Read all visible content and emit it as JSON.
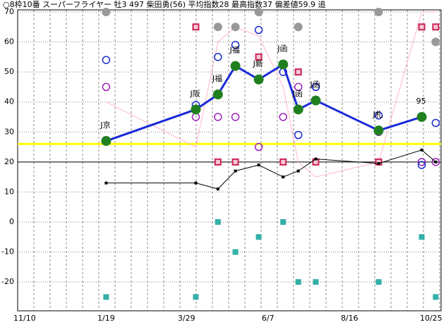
{
  "chart_data": {
    "type": "line",
    "title": "○8枠10番 スーパーフライヤー 牡3 497 柴田勇(56) 平均指数28 最高指数37 偏差値59.9 追",
    "x": [
      70,
      147,
      166,
      181,
      201,
      222,
      235,
      250,
      304,
      341,
      353
    ],
    "xlim": [
      -6,
      357.6
    ],
    "xticks": [
      {
        "value": 0,
        "label": "11/10"
      },
      {
        "value": 70,
        "label": "1/19"
      },
      {
        "value": 139,
        "label": "3/29"
      },
      {
        "value": 209,
        "label": "6/7"
      },
      {
        "value": 279,
        "label": "8/16"
      },
      {
        "value": 349,
        "label": "10/25"
      }
    ],
    "ylim": [
      -29.6,
      70.7
    ],
    "yticks": [
      -20,
      -10,
      0,
      10,
      20,
      30,
      40,
      50,
      60,
      70
    ],
    "grid": true,
    "hlines": [
      {
        "value": 26,
        "color": "#ffff00"
      },
      {
        "value": 20,
        "color": "#000000"
      }
    ],
    "series": [
      {
        "color": "#ffb6c8",
        "line": true,
        "marker": "none",
        "values": [
          40,
          25,
          60,
          65,
          62,
          45,
          20,
          15,
          20,
          70,
          70
        ]
      },
      {
        "color": "#999999",
        "line": false,
        "marker": "circle-filled",
        "values": [
          70,
          null,
          65,
          65,
          70,
          null,
          65,
          null,
          70,
          null,
          60
        ]
      },
      {
        "color": "#cc2255",
        "line": false,
        "marker": "square-open",
        "values": [
          null,
          65,
          20,
          20,
          55,
          20,
          50,
          20,
          20,
          65,
          65
        ]
      },
      {
        "color": "#9922bb",
        "line": false,
        "marker": "circle-open",
        "values": [
          45,
          35,
          35,
          35,
          25,
          35,
          45,
          45,
          30,
          20,
          20
        ]
      },
      {
        "color": "#1a2acc",
        "line": false,
        "marker": "circle-open",
        "values": [
          54,
          39,
          55,
          59,
          64,
          50,
          29,
          45,
          35.5,
          19,
          33
        ]
      },
      {
        "color": "#33b0a8",
        "line": false,
        "marker": "square-filled",
        "values": [
          -25,
          -25,
          0,
          -10,
          -5,
          0,
          -20,
          -20,
          -20,
          -5,
          -25
        ]
      },
      {
        "color": "#000000",
        "line": true,
        "marker": "square-small",
        "values": [
          13,
          13,
          11,
          17,
          19,
          15,
          17,
          21,
          19.5,
          24,
          20
        ]
      },
      {
        "color": "#1a2ad8",
        "line": true,
        "marker": "dot",
        "marker_color": "#208020",
        "values": [
          27,
          37.5,
          42.5,
          52,
          47.5,
          52.5,
          37.5,
          40.5,
          30.5,
          35,
          null
        ],
        "labels": [
          "J京",
          "J阪",
          "J福",
          "J福",
          "J新",
          "J函",
          "J函",
          "J函",
          "J札",
          "95",
          null
        ]
      }
    ]
  }
}
